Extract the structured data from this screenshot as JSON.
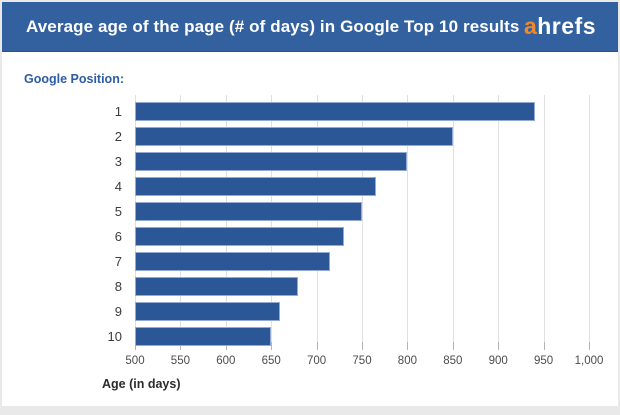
{
  "header": {
    "title": "Average age of the page (# of days) in Google Top 10 results",
    "logo_prefix": "a",
    "logo_suffix": "hrefs"
  },
  "colors": {
    "header_bg": "#33619f",
    "logo_prefix_color": "#f18a26",
    "bar_fill": "#2b5796",
    "bar_border": "#93abd2",
    "category_label_color": "#2d5ca6",
    "frame_bg": "#e9e9e9"
  },
  "chart_data": {
    "type": "bar",
    "orientation": "horizontal",
    "title": "Average age of the page (# of days) in Google Top 10 results",
    "categories_label": "Google Position:",
    "categories": [
      "1",
      "2",
      "3",
      "4",
      "5",
      "6",
      "7",
      "8",
      "9",
      "10"
    ],
    "values": [
      940,
      850,
      800,
      765,
      750,
      730,
      715,
      680,
      660,
      650
    ],
    "xlabel": "Age (in days)",
    "ylabel": "Google Position",
    "xlim": [
      500,
      1000
    ],
    "xticks": [
      500,
      550,
      600,
      650,
      700,
      750,
      800,
      850,
      900,
      950,
      1000
    ],
    "xtick_labels": [
      "500",
      "550",
      "600",
      "650",
      "700",
      "750",
      "800",
      "850",
      "900",
      "950",
      "1,000"
    ],
    "grid": true,
    "legend": false
  }
}
